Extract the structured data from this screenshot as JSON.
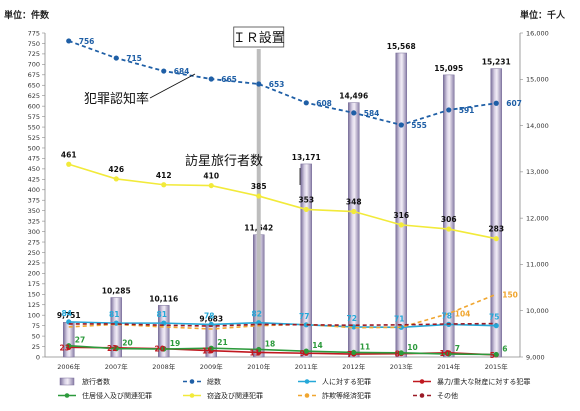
{
  "chart_data": {
    "type": "bar",
    "y_unit_left": "単位：件数",
    "y_unit_right": "単位：千人",
    "categories": [
      "2006年",
      "2007年",
      "2008年",
      "2009年",
      "2010年",
      "2011年",
      "2012年",
      "2013年",
      "2014年",
      "2015年"
    ],
    "y_left_ticks": [
      "0",
      "25",
      "50",
      "75",
      "100",
      "125",
      "150",
      "175",
      "200",
      "225",
      "250",
      "275",
      "300",
      "325",
      "350",
      "375",
      "400",
      "425",
      "450",
      "475",
      "500",
      "525",
      "550",
      "575",
      "600",
      "625",
      "650",
      "675",
      "700",
      "725",
      "750",
      "775"
    ],
    "y_right_ticks": [
      "9,000",
      "10,000",
      "11,000",
      "12,000",
      "13,000",
      "14,000",
      "15,000",
      "16,000"
    ],
    "ylim_left": [
      0,
      775
    ],
    "ylim_right": [
      9000,
      16000
    ],
    "bars": {
      "name": "旅行者数",
      "axis": "right",
      "values": [
        9751,
        10285,
        10116,
        9683,
        11642,
        13171,
        14496,
        15568,
        15095,
        15231
      ],
      "labels": [
        "9,751",
        "10,285",
        "10,116",
        "9,683",
        "11,642",
        "13,171",
        "14,496",
        "15,568",
        "15,095",
        "15,231"
      ]
    },
    "series": [
      {
        "name": "総数",
        "color": "#1f5fa6",
        "dash": "4,3",
        "marker": "dot",
        "values": [
          756,
          715,
          684,
          665,
          653,
          608,
          584,
          555,
          591,
          607
        ]
      },
      {
        "name": "人に対する犯罪",
        "color": "#25a8d8",
        "dash": "",
        "marker": "dot",
        "values": [
          84,
          81,
          81,
          78,
          82,
          77,
          72,
          71,
          78,
          75
        ]
      },
      {
        "name": "暴力/重大な財産に対する犯罪",
        "color": "#c0181f",
        "dash": "",
        "marker": "dot",
        "values": [
          23,
          22,
          20,
          15,
          11,
          9,
          7,
          8,
          10,
          5
        ]
      },
      {
        "name": "住居侵入及び関連犯罪",
        "color": "#2c9a3c",
        "dash": "",
        "marker": "dot",
        "values": [
          27,
          20,
          19,
          21,
          18,
          14,
          11,
          10,
          7,
          6
        ]
      },
      {
        "name": "窃盗及び関連犯罪",
        "color": "#f2ea3a",
        "dash": "",
        "marker": "dot",
        "values": [
          461,
          426,
          412,
          410,
          385,
          353,
          348,
          316,
          306,
          283
        ]
      },
      {
        "name": "詐欺等経済犯罪",
        "color": "#f0a630",
        "dash": "4,3",
        "marker": "none",
        "values": [
          72,
          78,
          72,
          67,
          75,
          78,
          70,
          71,
          104,
          150
        ]
      },
      {
        "name": "その他",
        "color": "#9b1a26",
        "dash": "4,3",
        "marker": "none",
        "values": [
          79,
          79,
          76,
          74,
          78,
          77,
          76,
          77,
          79,
          80
        ]
      }
    ],
    "annotations": {
      "ir_label": "ＩＲ設置",
      "crime_rate_label": "犯罪認知率",
      "visitors_label": "訪星旅行者数"
    },
    "legend": [
      "旅行者数",
      "総数",
      "人に対する犯罪",
      "暴力/重大な財産に対する犯罪",
      "住居侵入及び関連犯罪",
      "窃盗及び関連犯罪",
      "詐欺等経済犯罪",
      "その他"
    ]
  }
}
